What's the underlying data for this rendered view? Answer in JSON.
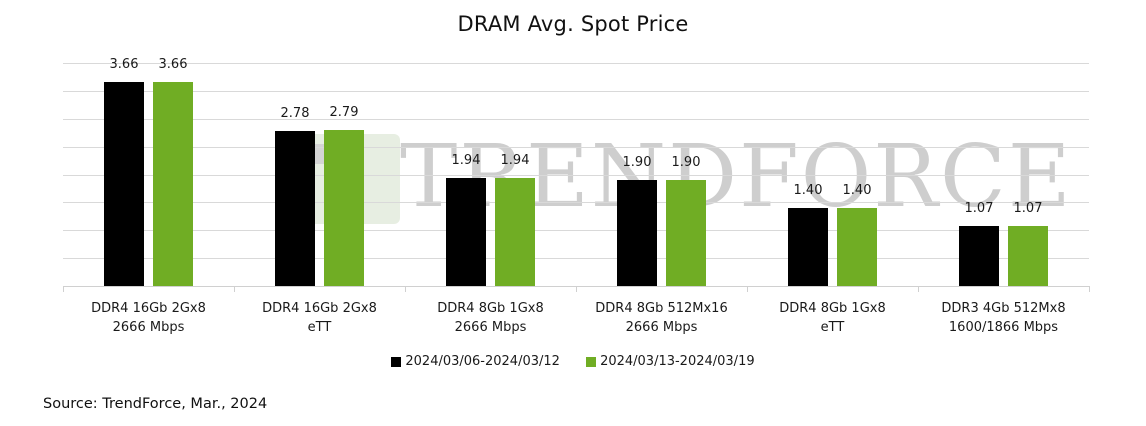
{
  "title": "DRAM Avg. Spot Price",
  "source": "Source: TrendForce, Mar., 2024",
  "watermark": "TRENDFORCE",
  "colors": {
    "series1": "#000000",
    "series2": "#70AD24",
    "grid": "#D9D9D9"
  },
  "chart_data": {
    "type": "bar",
    "title": "DRAM Avg. Spot Price",
    "xlabel": "",
    "ylabel": "",
    "ylim": [
      0,
      4
    ],
    "grid": true,
    "legend_position": "bottom",
    "categories": [
      "DDR4 16Gb 2Gx8 2666 Mbps",
      "DDR4 16Gb 2Gx8 eTT",
      "DDR4 8Gb 1Gx8 2666 Mbps",
      "DDR4 8Gb 512Mx16 2666 Mbps",
      "DDR4 8Gb 1Gx8 eTT",
      "DDR3 4Gb 512Mx8 1600/1866 Mbps"
    ],
    "series": [
      {
        "name": "2024/03/06-2024/03/12",
        "color": "#000000",
        "values": [
          3.66,
          2.78,
          1.94,
          1.9,
          1.4,
          1.07
        ]
      },
      {
        "name": "2024/03/13-2024/03/19",
        "color": "#70AD24",
        "values": [
          3.66,
          2.79,
          1.94,
          1.9,
          1.4,
          1.07
        ]
      }
    ],
    "annotations": [
      "Source: TrendForce, Mar., 2024"
    ]
  },
  "category_labels": [
    {
      "line1": "DDR4 16Gb 2Gx8",
      "line2": "2666 Mbps"
    },
    {
      "line1": "DDR4 16Gb 2Gx8",
      "line2": "eTT"
    },
    {
      "line1": "DDR4 8Gb 1Gx8",
      "line2": "2666 Mbps"
    },
    {
      "line1": "DDR4 8Gb 512Mx16",
      "line2": "2666 Mbps"
    },
    {
      "line1": "DDR4 8Gb 1Gx8",
      "line2": "eTT"
    },
    {
      "line1": "DDR3 4Gb 512Mx8",
      "line2": "1600/1866 Mbps"
    }
  ],
  "value_labels": {
    "series1": [
      "3.66",
      "2.78",
      "1.94",
      "1.90",
      "1.40",
      "1.07"
    ],
    "series2": [
      "3.66",
      "2.79",
      "1.94",
      "1.90",
      "1.40",
      "1.07"
    ]
  },
  "legend": {
    "series1": "2024/03/06-2024/03/12",
    "series2": "2024/03/13-2024/03/19"
  }
}
